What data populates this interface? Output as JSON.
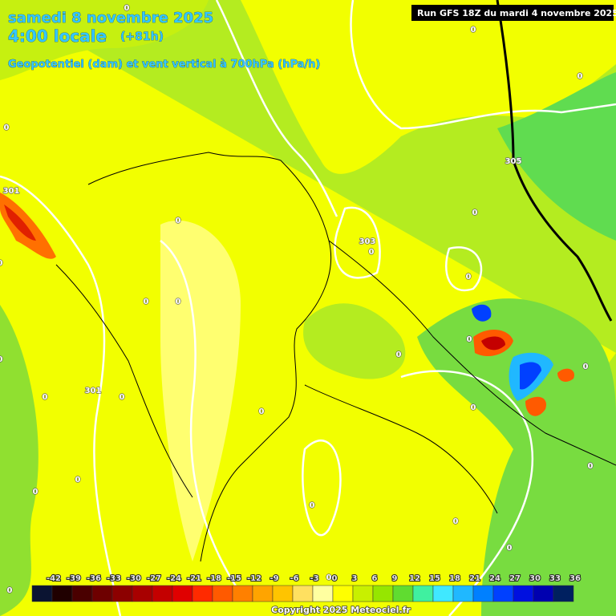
{
  "header": {
    "date": "samedi 8 novembre 2025",
    "time": "4:00 locale",
    "lead": "(+81h)",
    "parameter": "Geopotentiel (dam) et vent vertical à 700hPa (hPa/h)",
    "run": "Run GFS 18Z du mardi 4 novembre 2025"
  },
  "contour_labels": [
    "0",
    "0",
    "0",
    "0",
    "305",
    "0",
    "303",
    "0",
    "0",
    "0",
    "0",
    "0",
    "0",
    "0",
    "0",
    "0",
    "301",
    "0",
    "0",
    "0",
    "0",
    "0",
    "0",
    "0",
    "0",
    "0",
    "0",
    "301",
    "0",
    "0",
    "0"
  ],
  "scale": {
    "ticks": [
      -42,
      -39,
      -36,
      -33,
      -30,
      -27,
      -24,
      -21,
      -18,
      -15,
      -12,
      -9,
      -6,
      -3,
      0,
      3,
      6,
      9,
      12,
      15,
      18,
      21,
      24,
      27,
      30,
      33,
      36
    ],
    "colors": [
      "#0b1432",
      "#200000",
      "#4a0000",
      "#6e0000",
      "#8c0000",
      "#a80000",
      "#c40000",
      "#e00000",
      "#ff2a00",
      "#ff5a00",
      "#ff8000",
      "#ffa400",
      "#ffc400",
      "#ffe060",
      "#ffffa0",
      "#ffff00",
      "#c8f000",
      "#96e600",
      "#60dc30",
      "#40f0a0",
      "#40e8ff",
      "#20b8ff",
      "#0080ff",
      "#0040ff",
      "#0010e0",
      "#0000b0",
      "#002060"
    ]
  },
  "footer": {
    "copyright": "Copyright 2025 Meteociel.fr"
  }
}
